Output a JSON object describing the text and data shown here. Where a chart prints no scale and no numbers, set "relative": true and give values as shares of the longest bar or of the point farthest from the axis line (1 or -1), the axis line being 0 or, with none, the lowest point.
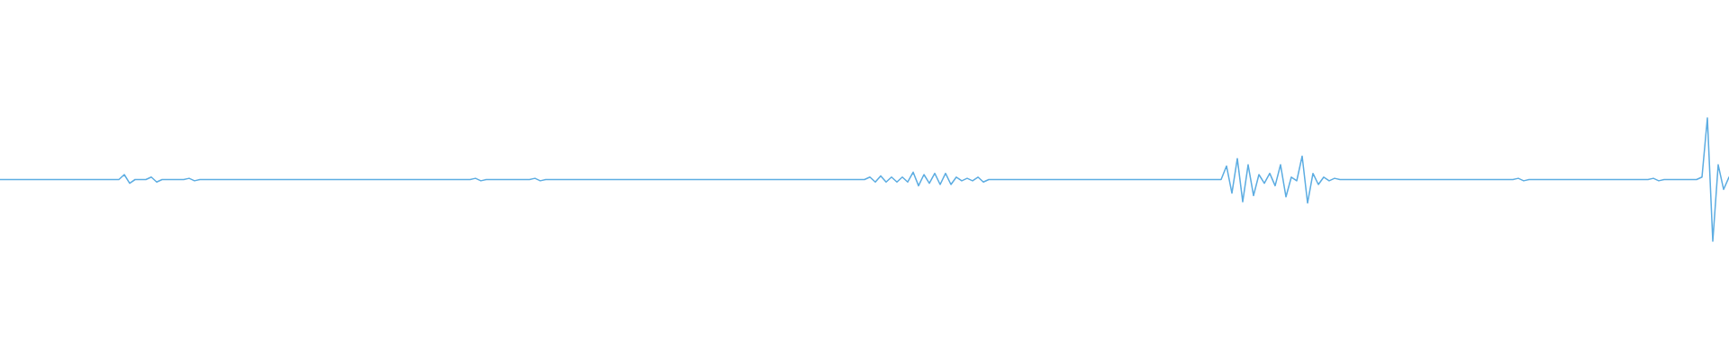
{
  "chart_data": {
    "type": "line",
    "relative": true,
    "categories": [
      null,
      null,
      null,
      null,
      null,
      null,
      null,
      null,
      null,
      null,
      null,
      null,
      null,
      null,
      null,
      null,
      null,
      null,
      null,
      null,
      null,
      null,
      null,
      null,
      null,
      null,
      null,
      null,
      null,
      null,
      null,
      null,
      null,
      null,
      null,
      null,
      null,
      null,
      null,
      null,
      null,
      null,
      null,
      null,
      null,
      null,
      null,
      null,
      null,
      null,
      null,
      null,
      null,
      null,
      null,
      null,
      null,
      null,
      null,
      null,
      null,
      null,
      null,
      null,
      null,
      null,
      null,
      null,
      null,
      null,
      null,
      null,
      null,
      null,
      null,
      null,
      null,
      null,
      null,
      null,
      null,
      null,
      null,
      null,
      null,
      null,
      null,
      null,
      null,
      null,
      null,
      null,
      null,
      null,
      null,
      null,
      null,
      null,
      null,
      null,
      null,
      null,
      null,
      null,
      null,
      null,
      null,
      null,
      null,
      null,
      null,
      null,
      null,
      null,
      null,
      null,
      null,
      null,
      null,
      null,
      null,
      null,
      null,
      null,
      null,
      null,
      null,
      null,
      null,
      null,
      null,
      null,
      null,
      null,
      null,
      null,
      null,
      null,
      null,
      null,
      null,
      null,
      null,
      null,
      null,
      null,
      null,
      null,
      null,
      null,
      null,
      null,
      null,
      null,
      null,
      null,
      null,
      null,
      null,
      null,
      null,
      null,
      null,
      null,
      null,
      null,
      null,
      null,
      null,
      null,
      null,
      null,
      null,
      null,
      null,
      null,
      null,
      null,
      null,
      null,
      null,
      null,
      null,
      null,
      null,
      null,
      null,
      null,
      null,
      null,
      null,
      null,
      null,
      null,
      null,
      null,
      null,
      null,
      null,
      null,
      null,
      null,
      null,
      null,
      null,
      null,
      null,
      null,
      null,
      null,
      null,
      null,
      null,
      null,
      null,
      null,
      null,
      null,
      null,
      null,
      null,
      null,
      null,
      null,
      null,
      null,
      null,
      null,
      null,
      null,
      null,
      null,
      null,
      null,
      null,
      null,
      null,
      null,
      null,
      null,
      null,
      null,
      null,
      null,
      null,
      null,
      null,
      null,
      null,
      null,
      null,
      null,
      null,
      null,
      null,
      null,
      null,
      null,
      null,
      null,
      null,
      null,
      null,
      null,
      null,
      null,
      null,
      null,
      null,
      null,
      null,
      null,
      null,
      null,
      null,
      null,
      null,
      null,
      null,
      null,
      null,
      null,
      null,
      null,
      null,
      null,
      null,
      null,
      null,
      null,
      null,
      null,
      null,
      null,
      null,
      null,
      null,
      null,
      null,
      null,
      null,
      null,
      null,
      null,
      null,
      null,
      null,
      null,
      null,
      null,
      null,
      null,
      null,
      null,
      null,
      null,
      null,
      null,
      null,
      null,
      null
    ],
    "series": [
      {
        "color": "#5dade2",
        "values": [
          0.5,
          0.5,
          0.5,
          0.5,
          0.5,
          0.5,
          0.5,
          0.5,
          0.5,
          0.5,
          0.5,
          0.5,
          0.5,
          0.5,
          0.5,
          0.5,
          0.5,
          0.5,
          0.5,
          0.5,
          0.5,
          0.5,
          0.5,
          0.54,
          0.47,
          0.5,
          0.5,
          0.5,
          0.52,
          0.48,
          0.5,
          0.5,
          0.5,
          0.5,
          0.5,
          0.51,
          0.49,
          0.5,
          0.5,
          0.5,
          0.5,
          0.5,
          0.5,
          0.5,
          0.5,
          0.5,
          0.5,
          0.5,
          0.5,
          0.5,
          0.5,
          0.5,
          0.5,
          0.5,
          0.5,
          0.5,
          0.5,
          0.5,
          0.5,
          0.5,
          0.5,
          0.5,
          0.5,
          0.5,
          0.5,
          0.5,
          0.5,
          0.5,
          0.5,
          0.5,
          0.5,
          0.5,
          0.5,
          0.5,
          0.5,
          0.5,
          0.5,
          0.5,
          0.5,
          0.5,
          0.5,
          0.5,
          0.5,
          0.5,
          0.5,
          0.5,
          0.5,
          0.5,
          0.51,
          0.49,
          0.5,
          0.5,
          0.5,
          0.5,
          0.5,
          0.5,
          0.5,
          0.5,
          0.5,
          0.51,
          0.49,
          0.5,
          0.5,
          0.5,
          0.5,
          0.5,
          0.5,
          0.5,
          0.5,
          0.5,
          0.5,
          0.5,
          0.5,
          0.5,
          0.5,
          0.5,
          0.5,
          0.5,
          0.5,
          0.5,
          0.5,
          0.5,
          0.5,
          0.5,
          0.5,
          0.5,
          0.5,
          0.5,
          0.5,
          0.5,
          0.5,
          0.5,
          0.5,
          0.5,
          0.5,
          0.5,
          0.5,
          0.5,
          0.5,
          0.5,
          0.5,
          0.5,
          0.5,
          0.5,
          0.5,
          0.5,
          0.5,
          0.5,
          0.5,
          0.5,
          0.5,
          0.5,
          0.5,
          0.5,
          0.5,
          0.5,
          0.5,
          0.5,
          0.5,
          0.5,
          0.5,
          0.52,
          0.48,
          0.53,
          0.48,
          0.52,
          0.48,
          0.52,
          0.48,
          0.56,
          0.45,
          0.54,
          0.47,
          0.55,
          0.46,
          0.55,
          0.46,
          0.52,
          0.49,
          0.51,
          0.49,
          0.52,
          0.48,
          0.5,
          0.5,
          0.5,
          0.5,
          0.5,
          0.5,
          0.5,
          0.5,
          0.5,
          0.5,
          0.5,
          0.5,
          0.5,
          0.5,
          0.5,
          0.5,
          0.5,
          0.5,
          0.5,
          0.5,
          0.5,
          0.5,
          0.5,
          0.5,
          0.5,
          0.5,
          0.5,
          0.5,
          0.5,
          0.5,
          0.5,
          0.5,
          0.5,
          0.5,
          0.5,
          0.5,
          0.5,
          0.5,
          0.5,
          0.5,
          0.5,
          0.5,
          0.5,
          0.5,
          0.61,
          0.39,
          0.67,
          0.32,
          0.62,
          0.37,
          0.54,
          0.47,
          0.55,
          0.45,
          0.62,
          0.36,
          0.52,
          0.49,
          0.69,
          0.31,
          0.55,
          0.46,
          0.52,
          0.49,
          0.51,
          0.5,
          0.5,
          0.5,
          0.5,
          0.5,
          0.5,
          0.5,
          0.5,
          0.5,
          0.5,
          0.5,
          0.5,
          0.5,
          0.5,
          0.5,
          0.5,
          0.5,
          0.5,
          0.5,
          0.5,
          0.5,
          0.5,
          0.5,
          0.5,
          0.5,
          0.5,
          0.5,
          0.5,
          0.5,
          0.5,
          0.5,
          0.5,
          0.5,
          0.51,
          0.49,
          0.5,
          0.5,
          0.5,
          0.5,
          0.5,
          0.5,
          0.5,
          0.5,
          0.5,
          0.5,
          0.5,
          0.5,
          0.5,
          0.5,
          0.5,
          0.5,
          0.5,
          0.5,
          0.5,
          0.5,
          0.5,
          0.5,
          0.5,
          0.51,
          0.49,
          0.5,
          0.5,
          0.5,
          0.5,
          0.5,
          0.5,
          0.5,
          0.52,
          1.0,
          0.0,
          0.62,
          0.42,
          0.52
        ]
      }
    ]
  }
}
